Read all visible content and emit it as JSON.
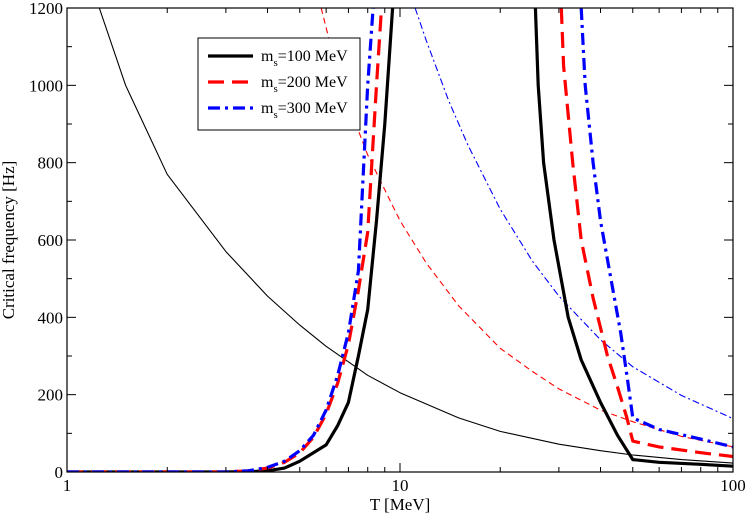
{
  "chart_data": {
    "type": "line",
    "title": "",
    "xlabel": "T [MeV]",
    "ylabel": "Critical frequency [Hz]",
    "xscale": "log",
    "xlim": [
      1,
      100
    ],
    "ylim": [
      0,
      1200
    ],
    "x_ticks": [
      {
        "value": 1,
        "label": "1"
      },
      {
        "value": 10,
        "label": "10"
      },
      {
        "value": 100,
        "label": "100"
      }
    ],
    "y_ticks": [
      {
        "value": 0,
        "label": "0"
      },
      {
        "value": 200,
        "label": "200"
      },
      {
        "value": 400,
        "label": "400"
      },
      {
        "value": 600,
        "label": "600"
      },
      {
        "value": 800,
        "label": "800"
      },
      {
        "value": 1000,
        "label": "1000"
      },
      {
        "value": 1200,
        "label": "1200"
      }
    ],
    "legend": {
      "placement": "top-left",
      "entries": [
        {
          "main": "m",
          "sub": "s",
          "rest": "=100 MeV",
          "color": "#000000",
          "dash": "solid"
        },
        {
          "main": "m",
          "sub": "s",
          "rest": "=200 MeV",
          "color": "#ff0000",
          "dash": "dash"
        },
        {
          "main": "m",
          "sub": "s",
          "rest": "=300 MeV",
          "color": "#0000ff",
          "dash": "dashdot"
        }
      ]
    },
    "series": [
      {
        "name": "ms=100 MeV (thin)",
        "color": "#000000",
        "style": "thin",
        "dash": "solid",
        "points": [
          [
            1.25,
            1200
          ],
          [
            1.5,
            1000
          ],
          [
            2,
            770
          ],
          [
            3,
            570
          ],
          [
            4,
            455
          ],
          [
            5,
            380
          ],
          [
            6,
            325
          ],
          [
            7,
            285
          ],
          [
            8,
            250
          ],
          [
            10,
            205
          ],
          [
            15,
            140
          ],
          [
            20,
            105
          ],
          [
            30,
            72
          ],
          [
            40,
            55
          ],
          [
            50,
            44
          ],
          [
            70,
            32
          ],
          [
            100,
            23
          ]
        ]
      },
      {
        "name": "ms=200 MeV (thin)",
        "color": "#ff0000",
        "style": "thin",
        "dash": "dash",
        "points": [
          [
            5.8,
            1200
          ],
          [
            6.2,
            1100
          ],
          [
            7,
            950
          ],
          [
            8,
            820
          ],
          [
            10,
            650
          ],
          [
            12,
            540
          ],
          [
            15,
            430
          ],
          [
            20,
            320
          ],
          [
            25,
            260
          ],
          [
            30,
            215
          ],
          [
            40,
            160
          ],
          [
            50,
            130
          ],
          [
            70,
            92
          ],
          [
            100,
            65
          ]
        ]
      },
      {
        "name": "ms=300 MeV (thin)",
        "color": "#0000ff",
        "style": "thin",
        "dash": "dashdot",
        "points": [
          [
            11.1,
            1200
          ],
          [
            12,
            1115
          ],
          [
            14,
            960
          ],
          [
            16,
            845
          ],
          [
            20,
            680
          ],
          [
            25,
            545
          ],
          [
            30,
            455
          ],
          [
            40,
            342
          ],
          [
            50,
            272
          ],
          [
            70,
            198
          ],
          [
            100,
            138
          ]
        ]
      },
      {
        "name": "ms=100 MeV",
        "color": "#000000",
        "style": "thick",
        "dash": "solid",
        "points": [
          [
            1,
            0
          ],
          [
            3,
            0
          ],
          [
            3.6,
            1
          ],
          [
            4,
            3
          ],
          [
            4.5,
            10
          ],
          [
            5,
            28
          ],
          [
            6,
            70
          ],
          [
            6.5,
            120
          ],
          [
            7,
            180
          ],
          [
            7.5,
            300
          ],
          [
            8,
            420
          ],
          [
            8.5,
            650
          ],
          [
            9,
            900
          ],
          [
            9.5,
            1200
          ]
        ]
      },
      {
        "name": "ms=100 MeV",
        "color": "#000000",
        "style": "thick",
        "dash": "solid",
        "points": [
          [
            25.5,
            1200
          ],
          [
            26,
            1000
          ],
          [
            27,
            800
          ],
          [
            29,
            600
          ],
          [
            32,
            400
          ],
          [
            35,
            290
          ],
          [
            40,
            180
          ],
          [
            45,
            95
          ],
          [
            50,
            32
          ],
          [
            60,
            25
          ],
          [
            80,
            20
          ],
          [
            100,
            15
          ]
        ]
      },
      {
        "name": "ms=200 MeV",
        "color": "#ff0000",
        "style": "thick",
        "dash": "dash",
        "points": [
          [
            1,
            0
          ],
          [
            3,
            0
          ],
          [
            3.5,
            3
          ],
          [
            4,
            10
          ],
          [
            4.5,
            25
          ],
          [
            5,
            50
          ],
          [
            5.5,
            90
          ],
          [
            6,
            150
          ],
          [
            6.5,
            230
          ],
          [
            7,
            330
          ],
          [
            7.5,
            470
          ],
          [
            8,
            620
          ],
          [
            8.5,
            1000
          ],
          [
            8.8,
            1200
          ]
        ]
      },
      {
        "name": "ms=200 MeV",
        "color": "#ff0000",
        "style": "thick",
        "dash": "dash",
        "points": [
          [
            30.5,
            1200
          ],
          [
            31,
            1050
          ],
          [
            33,
            800
          ],
          [
            35,
            600
          ],
          [
            38,
            450
          ],
          [
            42,
            300
          ],
          [
            45,
            220
          ],
          [
            48,
            140
          ],
          [
            50,
            80
          ],
          [
            60,
            65
          ],
          [
            80,
            50
          ],
          [
            100,
            40
          ]
        ]
      },
      {
        "name": "ms=300 MeV",
        "color": "#0000ff",
        "style": "thick",
        "dash": "dashdot",
        "points": [
          [
            1,
            0
          ],
          [
            3,
            0
          ],
          [
            3.5,
            3
          ],
          [
            4,
            12
          ],
          [
            4.5,
            28
          ],
          [
            5,
            55
          ],
          [
            5.5,
            95
          ],
          [
            6,
            160
          ],
          [
            6.5,
            250
          ],
          [
            7,
            360
          ],
          [
            7.5,
            520
          ],
          [
            8,
            1000
          ],
          [
            8.3,
            1200
          ]
        ]
      },
      {
        "name": "ms=300 MeV",
        "color": "#0000ff",
        "style": "thick",
        "dash": "dashdot",
        "points": [
          [
            35,
            1200
          ],
          [
            36,
            1000
          ],
          [
            38,
            800
          ],
          [
            40,
            650
          ],
          [
            43,
            500
          ],
          [
            46,
            360
          ],
          [
            48,
            250
          ],
          [
            50,
            140
          ],
          [
            60,
            110
          ],
          [
            80,
            85
          ],
          [
            100,
            65
          ]
        ]
      }
    ]
  }
}
